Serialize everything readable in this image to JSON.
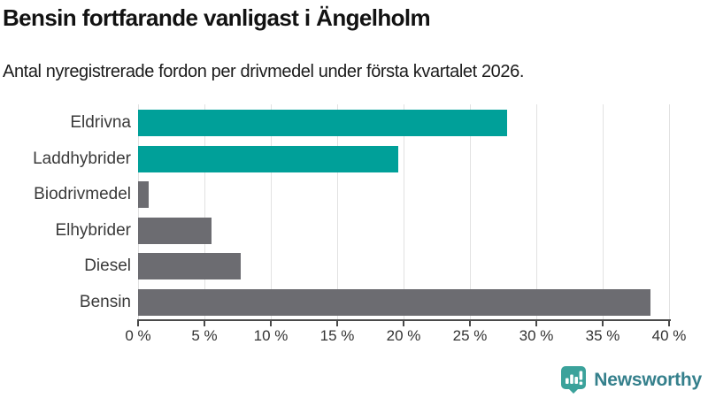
{
  "header": {
    "title": "Bensin fortfarande vanligast i Ängelholm",
    "subtitle": "Antal nyregistrerade fordon per drivmedel under första kvartalet 2026."
  },
  "chart_data": {
    "type": "bar",
    "orientation": "horizontal",
    "title": "Bensin fortfarande vanligast i Ängelholm",
    "subtitle": "Antal nyregistrerade fordon per drivmedel under första kvartalet 2026.",
    "categories": [
      "Eldrivna",
      "Laddhybrider",
      "Biodrivmedel",
      "Elhybrider",
      "Diesel",
      "Bensin"
    ],
    "values": [
      27.8,
      19.6,
      0.8,
      5.5,
      7.7,
      38.6
    ],
    "unit": "%",
    "bar_colors": [
      "#00a099",
      "#00a099",
      "#6c6c71",
      "#6c6c71",
      "#6c6c71",
      "#6c6c71"
    ],
    "xlim": [
      0,
      40
    ],
    "x_ticks": [
      0,
      5,
      10,
      15,
      20,
      25,
      30,
      35,
      40
    ],
    "x_tick_suffix": " %",
    "xlabel": "",
    "ylabel": "",
    "grid": true,
    "legend_position": "none"
  },
  "colors": {
    "accent_teal": "#00a099",
    "bar_gray": "#6c6c71",
    "gridline": "#e2e2e2",
    "axis": "#4a4a4a",
    "tick_text": "#333333",
    "logo_teal": "#3ba29b",
    "logo_text_color": "#35808c"
  },
  "footer": {
    "logo_text": "Newsworthy",
    "logo_icon": "newsworthy-bar-chart-speech-bubble-icon"
  }
}
